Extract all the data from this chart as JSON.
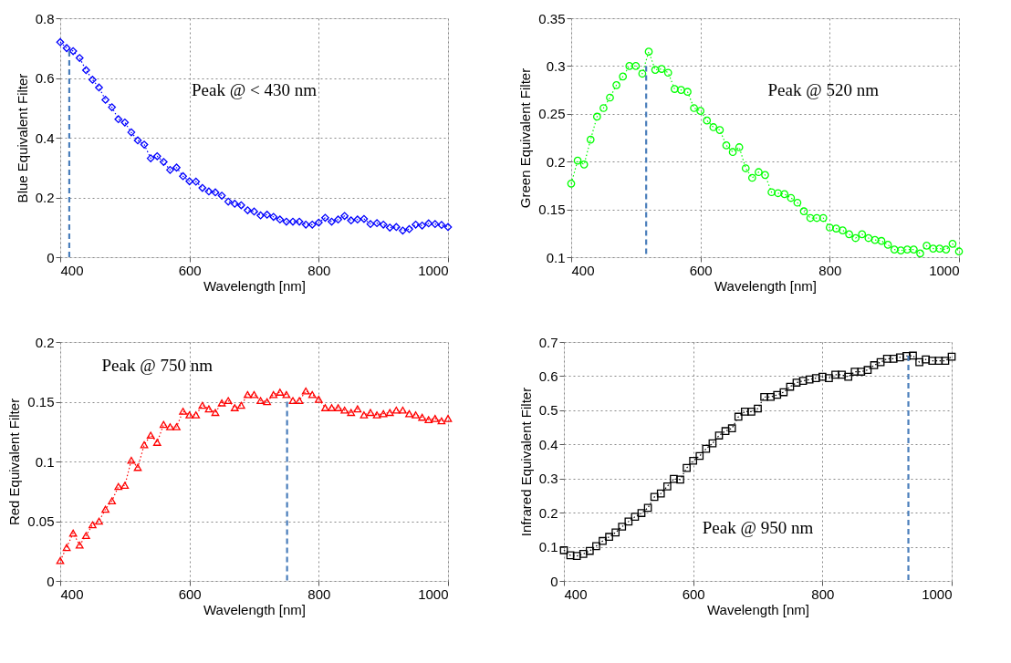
{
  "chart_data": [
    {
      "type": "line",
      "xlabel": "Wavelength [nm]",
      "ylabel": "Blue Equivalent Filter",
      "annotations": [
        "Peak @ < 430 nm"
      ],
      "xlim": [
        400,
        1000
      ],
      "xticks": [
        400,
        600,
        800,
        1000
      ],
      "ylim": [
        0,
        0.8
      ],
      "yticks": [
        0,
        0.2,
        0.4,
        0.6,
        0.8
      ],
      "grid": true,
      "marker": "diamond",
      "line_style": "dotted",
      "x": [
        400,
        410,
        420,
        430,
        440,
        450,
        460,
        470,
        480,
        490,
        500,
        510,
        520,
        530,
        540,
        550,
        560,
        570,
        580,
        590,
        600,
        610,
        620,
        630,
        640,
        650,
        660,
        670,
        680,
        690,
        700,
        710,
        720,
        730,
        740,
        750,
        760,
        770,
        780,
        790,
        800,
        810,
        820,
        830,
        840,
        850,
        860,
        870,
        880,
        890,
        900,
        910,
        920,
        930,
        940,
        950,
        960,
        970,
        980,
        990,
        1000
      ],
      "series": [
        {
          "color": "#0000ff",
          "values": [
            0.72,
            0.7,
            0.69,
            0.667,
            0.626,
            0.594,
            0.568,
            0.527,
            0.502,
            0.462,
            0.451,
            0.418,
            0.391,
            0.377,
            0.331,
            0.338,
            0.319,
            0.292,
            0.3,
            0.271,
            0.254,
            0.253,
            0.232,
            0.22,
            0.217,
            0.206,
            0.186,
            0.179,
            0.174,
            0.157,
            0.153,
            0.14,
            0.142,
            0.135,
            0.126,
            0.119,
            0.119,
            0.119,
            0.109,
            0.109,
            0.116,
            0.132,
            0.119,
            0.126,
            0.138,
            0.123,
            0.126,
            0.128,
            0.111,
            0.114,
            0.109,
            0.099,
            0.101,
            0.089,
            0.094,
            0.109,
            0.106,
            0.113,
            0.111,
            0.108,
            0.101
          ]
        },
        {
          "type": "line",
          "x": [
            414,
            414
          ],
          "values": [
            0.69,
            0
          ],
          "color": "#4a7ebb",
          "line_style": "dashed",
          "marker": "none"
        }
      ]
    },
    {
      "type": "line",
      "xlabel": "Wavelength [nm]",
      "ylabel": "Green Equivalent Filter",
      "annotations": [
        "Peak @ 520 nm"
      ],
      "xlim": [
        400,
        1000
      ],
      "xticks": [
        400,
        600,
        800,
        1000
      ],
      "ylim": [
        0.1,
        0.35
      ],
      "yticks": [
        0.1,
        0.15,
        0.2,
        0.25,
        0.3,
        0.35
      ],
      "grid": true,
      "marker": "circle",
      "line_style": "dotted",
      "x": [
        400,
        410,
        420,
        430,
        440,
        450,
        460,
        470,
        480,
        490,
        500,
        510,
        520,
        530,
        540,
        550,
        560,
        570,
        580,
        590,
        600,
        610,
        620,
        630,
        640,
        650,
        660,
        670,
        680,
        690,
        700,
        710,
        720,
        730,
        740,
        750,
        760,
        770,
        780,
        790,
        800,
        810,
        820,
        830,
        840,
        850,
        860,
        870,
        880,
        890,
        900,
        910,
        920,
        930,
        940,
        950,
        960,
        970,
        980,
        990,
        1000
      ],
      "series": [
        {
          "color": "#00ff00",
          "values": [
            0.177,
            0.201,
            0.197,
            0.223,
            0.247,
            0.256,
            0.267,
            0.28,
            0.289,
            0.3,
            0.3,
            0.292,
            0.315,
            0.296,
            0.297,
            0.293,
            0.276,
            0.275,
            0.273,
            0.256,
            0.253,
            0.243,
            0.236,
            0.233,
            0.217,
            0.21,
            0.215,
            0.193,
            0.183,
            0.189,
            0.186,
            0.168,
            0.167,
            0.166,
            0.162,
            0.157,
            0.148,
            0.141,
            0.141,
            0.141,
            0.131,
            0.13,
            0.128,
            0.124,
            0.12,
            0.124,
            0.12,
            0.118,
            0.117,
            0.113,
            0.108,
            0.107,
            0.108,
            0.108,
            0.104,
            0.112,
            0.109,
            0.109,
            0.108,
            0.114,
            0.106
          ]
        },
        {
          "type": "line",
          "x": [
            516,
            516
          ],
          "values": [
            0.3,
            0.1
          ],
          "color": "#4a7ebb",
          "line_style": "dashed",
          "marker": "none"
        }
      ]
    },
    {
      "type": "line",
      "xlabel": "Wavelength [nm]",
      "ylabel": "Red Equivalent Filter",
      "annotations": [
        "Peak @ 750 nm"
      ],
      "xlim": [
        400,
        1000
      ],
      "xticks": [
        400,
        600,
        800,
        1000
      ],
      "ylim": [
        0,
        0.2
      ],
      "yticks": [
        0,
        0.05,
        0.1,
        0.15,
        0.2
      ],
      "grid": true,
      "marker": "triangle",
      "line_style": "dotted",
      "x": [
        400,
        410,
        420,
        430,
        440,
        450,
        460,
        470,
        480,
        490,
        500,
        510,
        520,
        530,
        540,
        550,
        560,
        570,
        580,
        590,
        600,
        610,
        620,
        630,
        640,
        650,
        660,
        670,
        680,
        690,
        700,
        710,
        720,
        730,
        740,
        750,
        760,
        770,
        780,
        790,
        800,
        810,
        820,
        830,
        840,
        850,
        860,
        870,
        880,
        890,
        900,
        910,
        920,
        930,
        940,
        950,
        960,
        970,
        980,
        990,
        1000
      ],
      "series": [
        {
          "color": "#ff0000",
          "values": [
            0.017,
            0.028,
            0.04,
            0.03,
            0.038,
            0.047,
            0.05,
            0.06,
            0.067,
            0.079,
            0.08,
            0.101,
            0.095,
            0.114,
            0.122,
            0.116,
            0.131,
            0.129,
            0.129,
            0.142,
            0.139,
            0.139,
            0.147,
            0.144,
            0.141,
            0.149,
            0.151,
            0.145,
            0.147,
            0.156,
            0.156,
            0.151,
            0.15,
            0.156,
            0.158,
            0.156,
            0.151,
            0.151,
            0.159,
            0.156,
            0.152,
            0.145,
            0.145,
            0.145,
            0.143,
            0.141,
            0.144,
            0.139,
            0.141,
            0.139,
            0.14,
            0.141,
            0.143,
            0.143,
            0.14,
            0.139,
            0.137,
            0.135,
            0.136,
            0.134,
            0.136
          ]
        },
        {
          "type": "line",
          "x": [
            751,
            751
          ],
          "values": [
            0.15,
            0
          ],
          "color": "#4a7ebb",
          "line_style": "dashed",
          "marker": "none"
        }
      ]
    },
    {
      "type": "line",
      "xlabel": "Wavelength [nm]",
      "ylabel": "Infrared Equivalent Filter",
      "annotations": [
        "Peak @ 950 nm"
      ],
      "xlim": [
        400,
        1000
      ],
      "xticks": [
        400,
        600,
        800,
        1000
      ],
      "ylim": [
        0,
        0.7
      ],
      "yticks": [
        0,
        0.1,
        0.2,
        0.3,
        0.4,
        0.5,
        0.6,
        0.7
      ],
      "grid": true,
      "marker": "square",
      "line_style": "dotted",
      "x": [
        400,
        410,
        420,
        430,
        440,
        450,
        460,
        470,
        480,
        490,
        500,
        510,
        520,
        530,
        540,
        550,
        560,
        570,
        580,
        590,
        600,
        610,
        620,
        630,
        640,
        650,
        660,
        670,
        680,
        690,
        700,
        710,
        720,
        730,
        740,
        750,
        760,
        770,
        780,
        790,
        800,
        810,
        820,
        830,
        840,
        850,
        860,
        870,
        880,
        890,
        900,
        910,
        920,
        930,
        940,
        950,
        960,
        970,
        980,
        990,
        1000
      ],
      "series": [
        {
          "color": "#000000",
          "values": [
            0.09,
            0.075,
            0.073,
            0.079,
            0.088,
            0.102,
            0.117,
            0.129,
            0.142,
            0.159,
            0.174,
            0.188,
            0.199,
            0.214,
            0.246,
            0.256,
            0.277,
            0.299,
            0.297,
            0.331,
            0.352,
            0.366,
            0.387,
            0.403,
            0.426,
            0.439,
            0.447,
            0.481,
            0.496,
            0.496,
            0.505,
            0.539,
            0.539,
            0.545,
            0.553,
            0.569,
            0.581,
            0.586,
            0.59,
            0.594,
            0.598,
            0.594,
            0.604,
            0.604,
            0.598,
            0.613,
            0.613,
            0.618,
            0.632,
            0.641,
            0.651,
            0.651,
            0.655,
            0.659,
            0.66,
            0.641,
            0.649,
            0.645,
            0.645,
            0.645,
            0.657
          ]
        },
        {
          "type": "line",
          "x": [
            933,
            933
          ],
          "values": [
            0.66,
            0
          ],
          "color": "#4a7ebb",
          "line_style": "dashed",
          "marker": "none"
        }
      ]
    }
  ]
}
